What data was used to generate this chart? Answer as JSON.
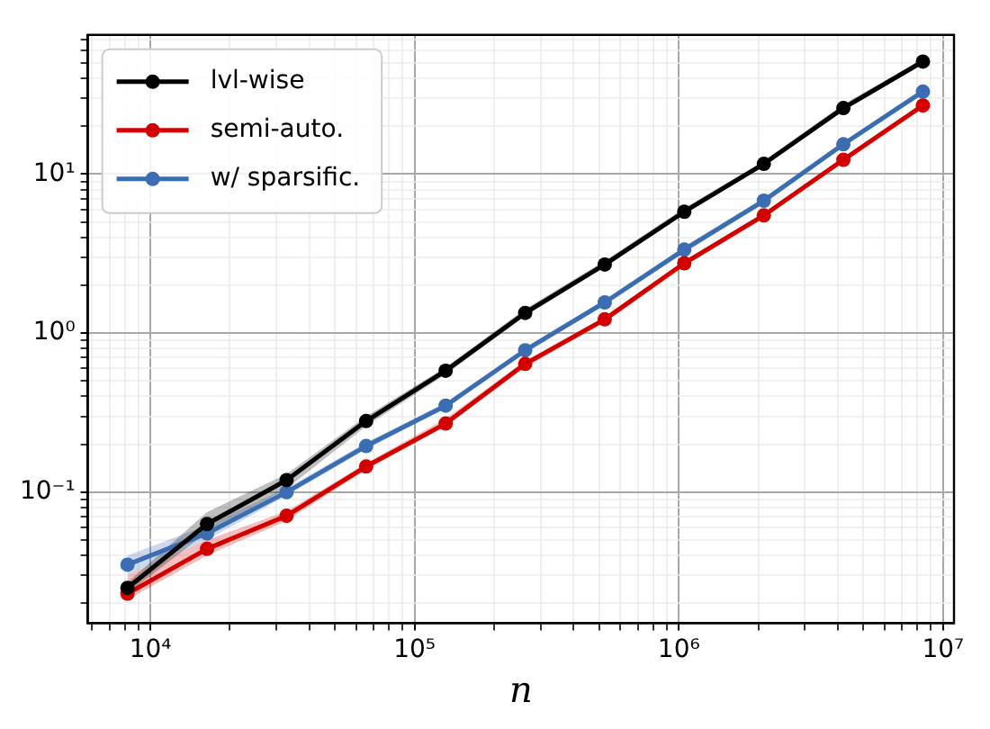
{
  "chart_data": {
    "type": "line",
    "xlabel": "n",
    "log": "xy",
    "grid": true,
    "legend": "top left",
    "marker": "circle",
    "line_style": "solid",
    "x": [
      8192,
      16384,
      32768,
      65536,
      131072,
      262144,
      524288,
      1048576,
      2097152,
      4194304,
      8388608
    ],
    "xlim": [
      5800,
      11000000
    ],
    "xticks": [
      {
        "value": 6000,
        "label": null
      },
      {
        "value": 7000,
        "label": null
      },
      {
        "value": 8000,
        "label": null
      },
      {
        "value": 9000,
        "label": null
      },
      {
        "value": 10000,
        "label": "10⁴"
      },
      {
        "value": 20000,
        "label": null
      },
      {
        "value": 30000,
        "label": null
      },
      {
        "value": 40000,
        "label": null
      },
      {
        "value": 50000,
        "label": null
      },
      {
        "value": 60000,
        "label": null
      },
      {
        "value": 70000,
        "label": null
      },
      {
        "value": 80000,
        "label": null
      },
      {
        "value": 90000,
        "label": null
      },
      {
        "value": 100000,
        "label": "10⁵"
      },
      {
        "value": 200000,
        "label": null
      },
      {
        "value": 300000,
        "label": null
      },
      {
        "value": 400000,
        "label": null
      },
      {
        "value": 500000,
        "label": null
      },
      {
        "value": 600000,
        "label": null
      },
      {
        "value": 700000,
        "label": null
      },
      {
        "value": 800000,
        "label": null
      },
      {
        "value": 900000,
        "label": null
      },
      {
        "value": 1000000,
        "label": "10⁶"
      },
      {
        "value": 2000000,
        "label": null
      },
      {
        "value": 3000000,
        "label": null
      },
      {
        "value": 4000000,
        "label": null
      },
      {
        "value": 5000000,
        "label": null
      },
      {
        "value": 6000000,
        "label": null
      },
      {
        "value": 7000000,
        "label": null
      },
      {
        "value": 8000000,
        "label": null
      },
      {
        "value": 9000000,
        "label": null
      },
      {
        "value": 10000000,
        "label": "10⁷"
      }
    ],
    "ylim": [
      0.015,
      75
    ],
    "yticks": [
      {
        "value": 0.02,
        "label": null
      },
      {
        "value": 0.03,
        "label": null
      },
      {
        "value": 0.04,
        "label": null
      },
      {
        "value": 0.05,
        "label": null
      },
      {
        "value": 0.06,
        "label": null
      },
      {
        "value": 0.07,
        "label": null
      },
      {
        "value": 0.08,
        "label": null
      },
      {
        "value": 0.09,
        "label": null
      },
      {
        "value": 0.1,
        "label": "10⁻¹"
      },
      {
        "value": 0.2,
        "label": null
      },
      {
        "value": 0.3,
        "label": null
      },
      {
        "value": 0.4,
        "label": null
      },
      {
        "value": 0.5,
        "label": null
      },
      {
        "value": 0.6,
        "label": null
      },
      {
        "value": 0.7,
        "label": null
      },
      {
        "value": 0.8,
        "label": null
      },
      {
        "value": 0.9,
        "label": null
      },
      {
        "value": 1,
        "label": "10⁰"
      },
      {
        "value": 2,
        "label": null
      },
      {
        "value": 3,
        "label": null
      },
      {
        "value": 4,
        "label": null
      },
      {
        "value": 5,
        "label": null
      },
      {
        "value": 6,
        "label": null
      },
      {
        "value": 7,
        "label": null
      },
      {
        "value": 8,
        "label": null
      },
      {
        "value": 9,
        "label": null
      },
      {
        "value": 10,
        "label": "10¹"
      },
      {
        "value": 20,
        "label": null
      },
      {
        "value": 30,
        "label": null
      },
      {
        "value": 40,
        "label": null
      },
      {
        "value": 50,
        "label": null
      },
      {
        "value": 60,
        "label": null
      },
      {
        "value": 70,
        "label": null
      }
    ],
    "series": [
      {
        "name": "lvl-wise",
        "color": "#000000",
        "values": [
          0.025,
          0.063,
          0.119,
          0.28,
          0.58,
          1.34,
          2.7,
          5.8,
          11.6,
          26,
          51
        ],
        "lower": [
          0.023,
          0.056,
          0.105,
          0.26,
          0.55,
          1.28,
          2.6,
          5.6,
          11.2,
          25,
          49
        ],
        "upper": [
          0.027,
          0.075,
          0.13,
          0.3,
          0.61,
          1.42,
          2.85,
          6.1,
          12.1,
          27.5,
          53
        ]
      },
      {
        "name": "semi-auto.",
        "color": "#d40000",
        "values": [
          0.023,
          0.044,
          0.071,
          0.145,
          0.27,
          0.64,
          1.22,
          2.75,
          5.5,
          12.3,
          27
        ],
        "lower": [
          0.021,
          0.04,
          0.066,
          0.138,
          0.26,
          0.61,
          1.17,
          2.65,
          5.3,
          11.8,
          26
        ],
        "upper": [
          0.03,
          0.05,
          0.076,
          0.152,
          0.29,
          0.67,
          1.27,
          2.85,
          5.7,
          12.8,
          28
        ]
      },
      {
        "name": "w/ sparsific.",
        "color": "#3b6db3",
        "values": [
          0.035,
          0.055,
          0.1,
          0.195,
          0.35,
          0.78,
          1.56,
          3.35,
          6.8,
          15.4,
          33
        ],
        "lower": [
          0.03,
          0.05,
          0.095,
          0.186,
          0.335,
          0.75,
          1.5,
          3.2,
          6.5,
          14.8,
          32
        ],
        "upper": [
          0.04,
          0.062,
          0.106,
          0.205,
          0.365,
          0.81,
          1.62,
          3.5,
          7.1,
          16,
          34.5
        ]
      }
    ]
  }
}
